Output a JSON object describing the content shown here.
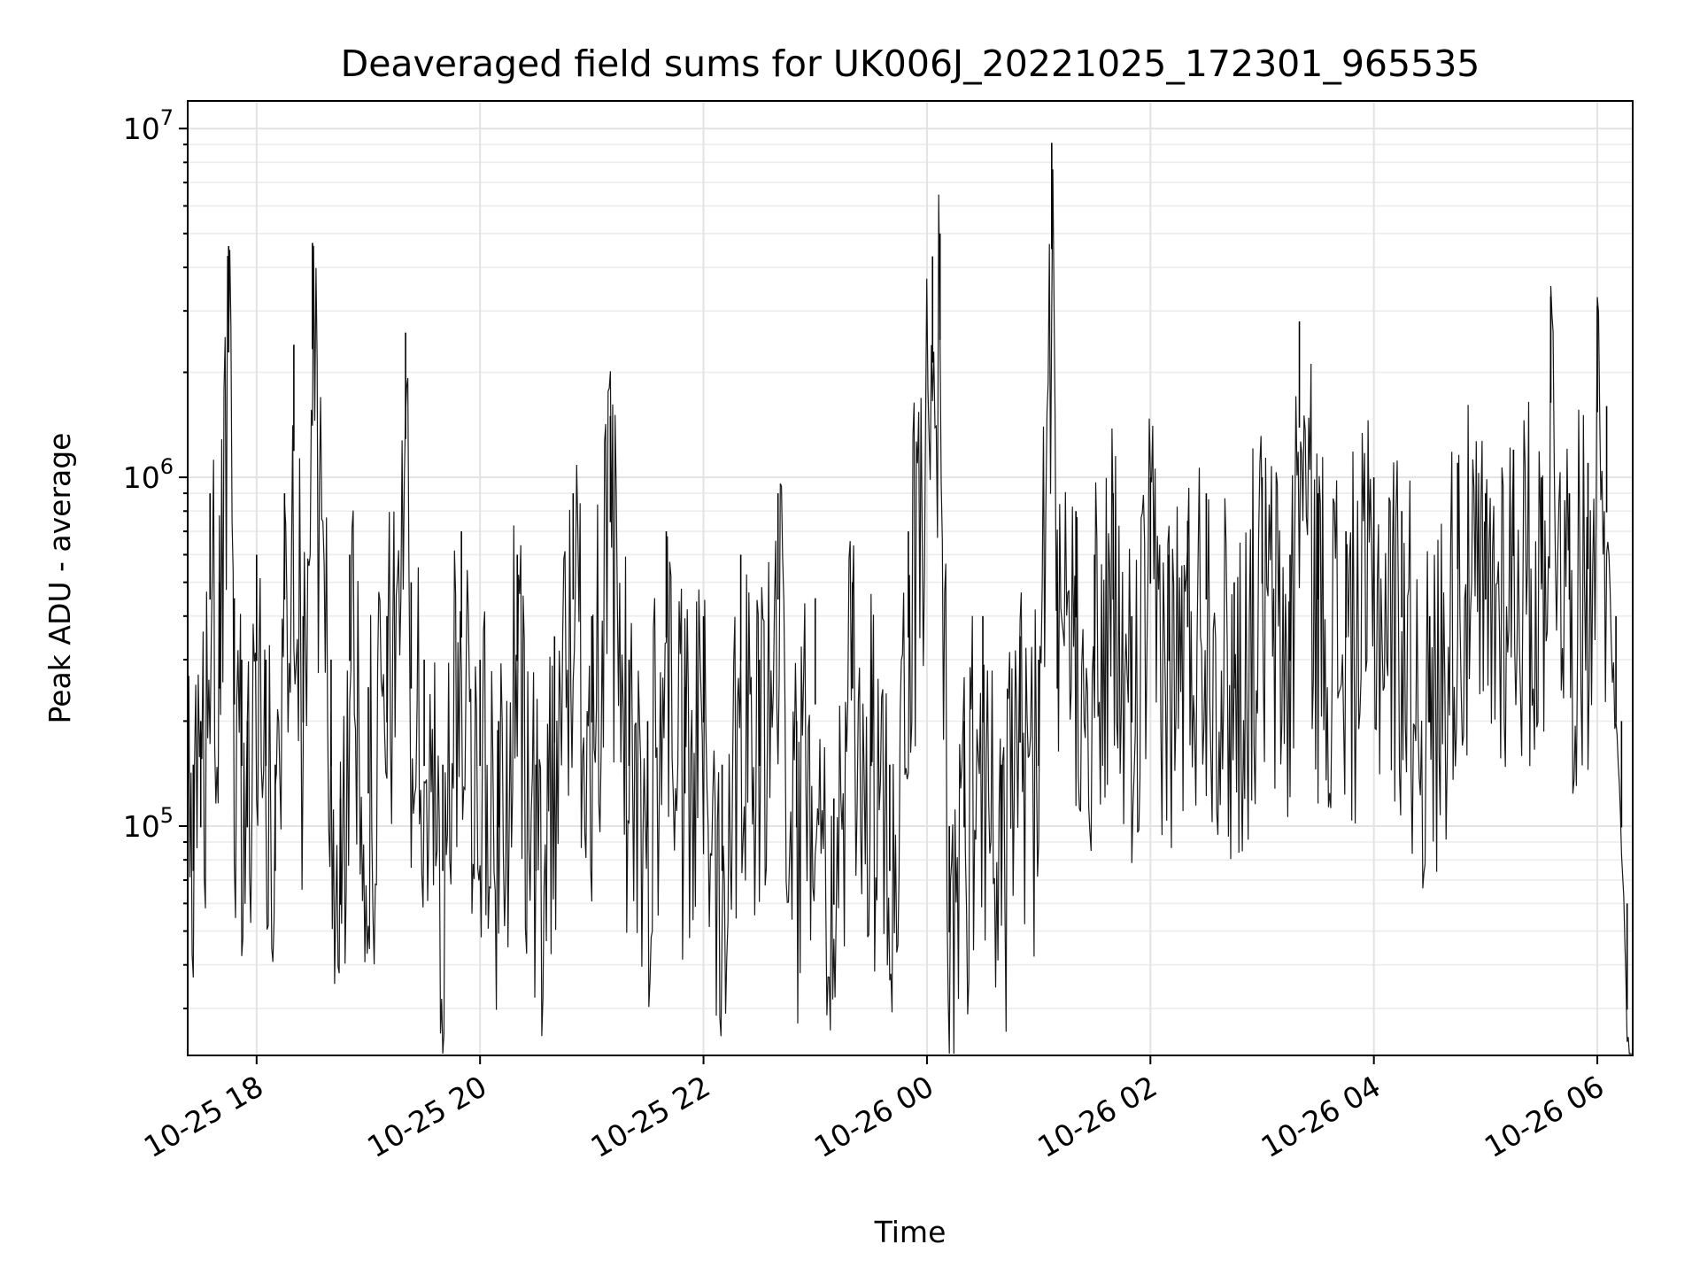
{
  "chart_data": {
    "type": "line",
    "title": "Deaveraged field sums for UK006J_20221025_172301_965535",
    "xlabel": "Time",
    "ylabel": "Peak ADU - average",
    "yscale": "log",
    "ylim": [
      22000,
      12000000
    ],
    "xlim": [
      "2022-10-25 17:23",
      "2022-10-26 06:19"
    ],
    "grid": true,
    "line_color": "#000000",
    "x_ticks": [
      {
        "value": "2022-10-25 18:00",
        "label": "10-25 18"
      },
      {
        "value": "2022-10-25 20:00",
        "label": "10-25 20"
      },
      {
        "value": "2022-10-25 22:00",
        "label": "10-25 22"
      },
      {
        "value": "2022-10-26 00:00",
        "label": "10-26 00"
      },
      {
        "value": "2022-10-26 02:00",
        "label": "10-26 02"
      },
      {
        "value": "2022-10-26 04:00",
        "label": "10-26 04"
      },
      {
        "value": "2022-10-26 06:00",
        "label": "10-26 06"
      }
    ],
    "y_ticks": [
      {
        "value": 100000,
        "base": "10",
        "exp": "5"
      },
      {
        "value": 1000000,
        "base": "10",
        "exp": "6"
      },
      {
        "value": 10000000,
        "base": "10",
        "exp": "7"
      }
    ],
    "series": [
      {
        "x": [
          "2022-10-25 17:23",
          "2022-10-25 17:26",
          "2022-10-25 17:30",
          "2022-10-25 17:35",
          "2022-10-25 17:40",
          "2022-10-25 17:45",
          "2022-10-25 17:48",
          "2022-10-25 17:52",
          "2022-10-25 17:55",
          "2022-10-25 18:00",
          "2022-10-25 18:05",
          "2022-10-25 18:10",
          "2022-10-25 18:15",
          "2022-10-25 18:20",
          "2022-10-25 18:25",
          "2022-10-25 18:30",
          "2022-10-25 18:40",
          "2022-10-25 18:45",
          "2022-10-25 18:50",
          "2022-10-25 19:00",
          "2022-10-25 19:10",
          "2022-10-25 19:20",
          "2022-10-25 19:23",
          "2022-10-25 19:30",
          "2022-10-25 19:40",
          "2022-10-25 19:50",
          "2022-10-25 20:00",
          "2022-10-25 20:10",
          "2022-10-25 20:20",
          "2022-10-25 20:30",
          "2022-10-25 20:40",
          "2022-10-25 20:50",
          "2022-10-25 21:00",
          "2022-10-25 21:10",
          "2022-10-25 21:20",
          "2022-10-25 21:30",
          "2022-10-25 21:40",
          "2022-10-25 21:50",
          "2022-10-25 22:00",
          "2022-10-25 22:10",
          "2022-10-25 22:20",
          "2022-10-25 22:30",
          "2022-10-25 22:40",
          "2022-10-25 22:50",
          "2022-10-25 23:00",
          "2022-10-25 23:10",
          "2022-10-25 23:20",
          "2022-10-25 23:30",
          "2022-10-25 23:40",
          "2022-10-25 23:50",
          "2022-10-26 00:03",
          "2022-10-26 00:07",
          "2022-10-26 00:12",
          "2022-10-26 00:20",
          "2022-10-26 00:30",
          "2022-10-26 00:40",
          "2022-10-26 00:50",
          "2022-10-26 01:00",
          "2022-10-26 01:07",
          "2022-10-26 01:10",
          "2022-10-26 01:20",
          "2022-10-26 01:30",
          "2022-10-26 01:40",
          "2022-10-26 01:50",
          "2022-10-26 02:00",
          "2022-10-26 02:10",
          "2022-10-26 02:20",
          "2022-10-26 02:30",
          "2022-10-26 02:45",
          "2022-10-26 03:00",
          "2022-10-26 03:15",
          "2022-10-26 03:20",
          "2022-10-26 03:30",
          "2022-10-26 03:45",
          "2022-10-26 04:00",
          "2022-10-26 04:15",
          "2022-10-26 04:30",
          "2022-10-26 04:45",
          "2022-10-26 05:00",
          "2022-10-26 05:15",
          "2022-10-26 05:30",
          "2022-10-26 05:35",
          "2022-10-26 05:45",
          "2022-10-26 05:55",
          "2022-10-26 06:00",
          "2022-10-26 06:05",
          "2022-10-26 06:10",
          "2022-10-26 06:13",
          "2022-10-26 06:16",
          "2022-10-26 06:19"
        ],
        "y": [
          180000,
          150000,
          200000,
          900000,
          500000,
          4600000,
          450000,
          300000,
          200000,
          600000,
          300000,
          150000,
          900000,
          2400000,
          400000,
          4700000,
          300000,
          120000,
          600000,
          250000,
          400000,
          2600000,
          500000,
          300000,
          150000,
          700000,
          300000,
          200000,
          600000,
          150000,
          350000,
          900000,
          400000,
          1500000,
          300000,
          200000,
          700000,
          250000,
          400000,
          150000,
          600000,
          300000,
          900000,
          200000,
          450000,
          120000,
          500000,
          300000,
          150000,
          700000,
          4300000,
          5000000,
          100000,
          200000,
          400000,
          150000,
          350000,
          300000,
          9100000,
          500000,
          800000,
          600000,
          900000,
          400000,
          1000000,
          600000,
          750000,
          900000,
          500000,
          1000000,
          600000,
          2800000,
          900000,
          700000,
          1000000,
          800000,
          400000,
          1100000,
          900000,
          1200000,
          1000000,
          3300000,
          900000,
          1100000,
          3100000,
          1600000,
          400000,
          200000,
          60000,
          32000
        ]
      }
    ]
  }
}
